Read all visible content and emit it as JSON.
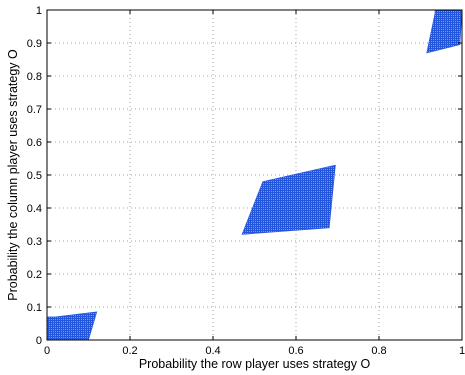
{
  "chart_data": {
    "type": "scatter",
    "title": "",
    "xlabel": "Probability the row player uses strategy O",
    "ylabel": "Probability the column player uses strategy O",
    "xlim": [
      0,
      1
    ],
    "ylim": [
      0,
      1
    ],
    "x_ticks": [
      "0",
      "0.2",
      "0.4",
      "0.6",
      "0.8",
      "1"
    ],
    "y_ticks": [
      "0",
      "0.1",
      "0.2",
      "0.3",
      "0.4",
      "0.5",
      "0.6",
      "0.7",
      "0.8",
      "0.9",
      "1"
    ],
    "grid": true,
    "marker_color": "#2255dd",
    "regions": [
      {
        "corners": [
          [
            0.0,
            0.0
          ],
          [
            0.1,
            0.0
          ],
          [
            0.12,
            0.085
          ],
          [
            0.02,
            0.07
          ],
          [
            0.0,
            0.07
          ]
        ]
      },
      {
        "corners": [
          [
            0.47,
            0.32
          ],
          [
            0.68,
            0.34
          ],
          [
            0.695,
            0.53
          ],
          [
            0.52,
            0.48
          ],
          [
            0.52,
            0.48
          ]
        ]
      },
      {
        "corners": [
          [
            0.915,
            0.87
          ],
          [
            0.995,
            0.895
          ],
          [
            1.0,
            1.0
          ],
          [
            0.935,
            1.0
          ],
          [
            0.935,
            0.99
          ]
        ]
      }
    ]
  }
}
